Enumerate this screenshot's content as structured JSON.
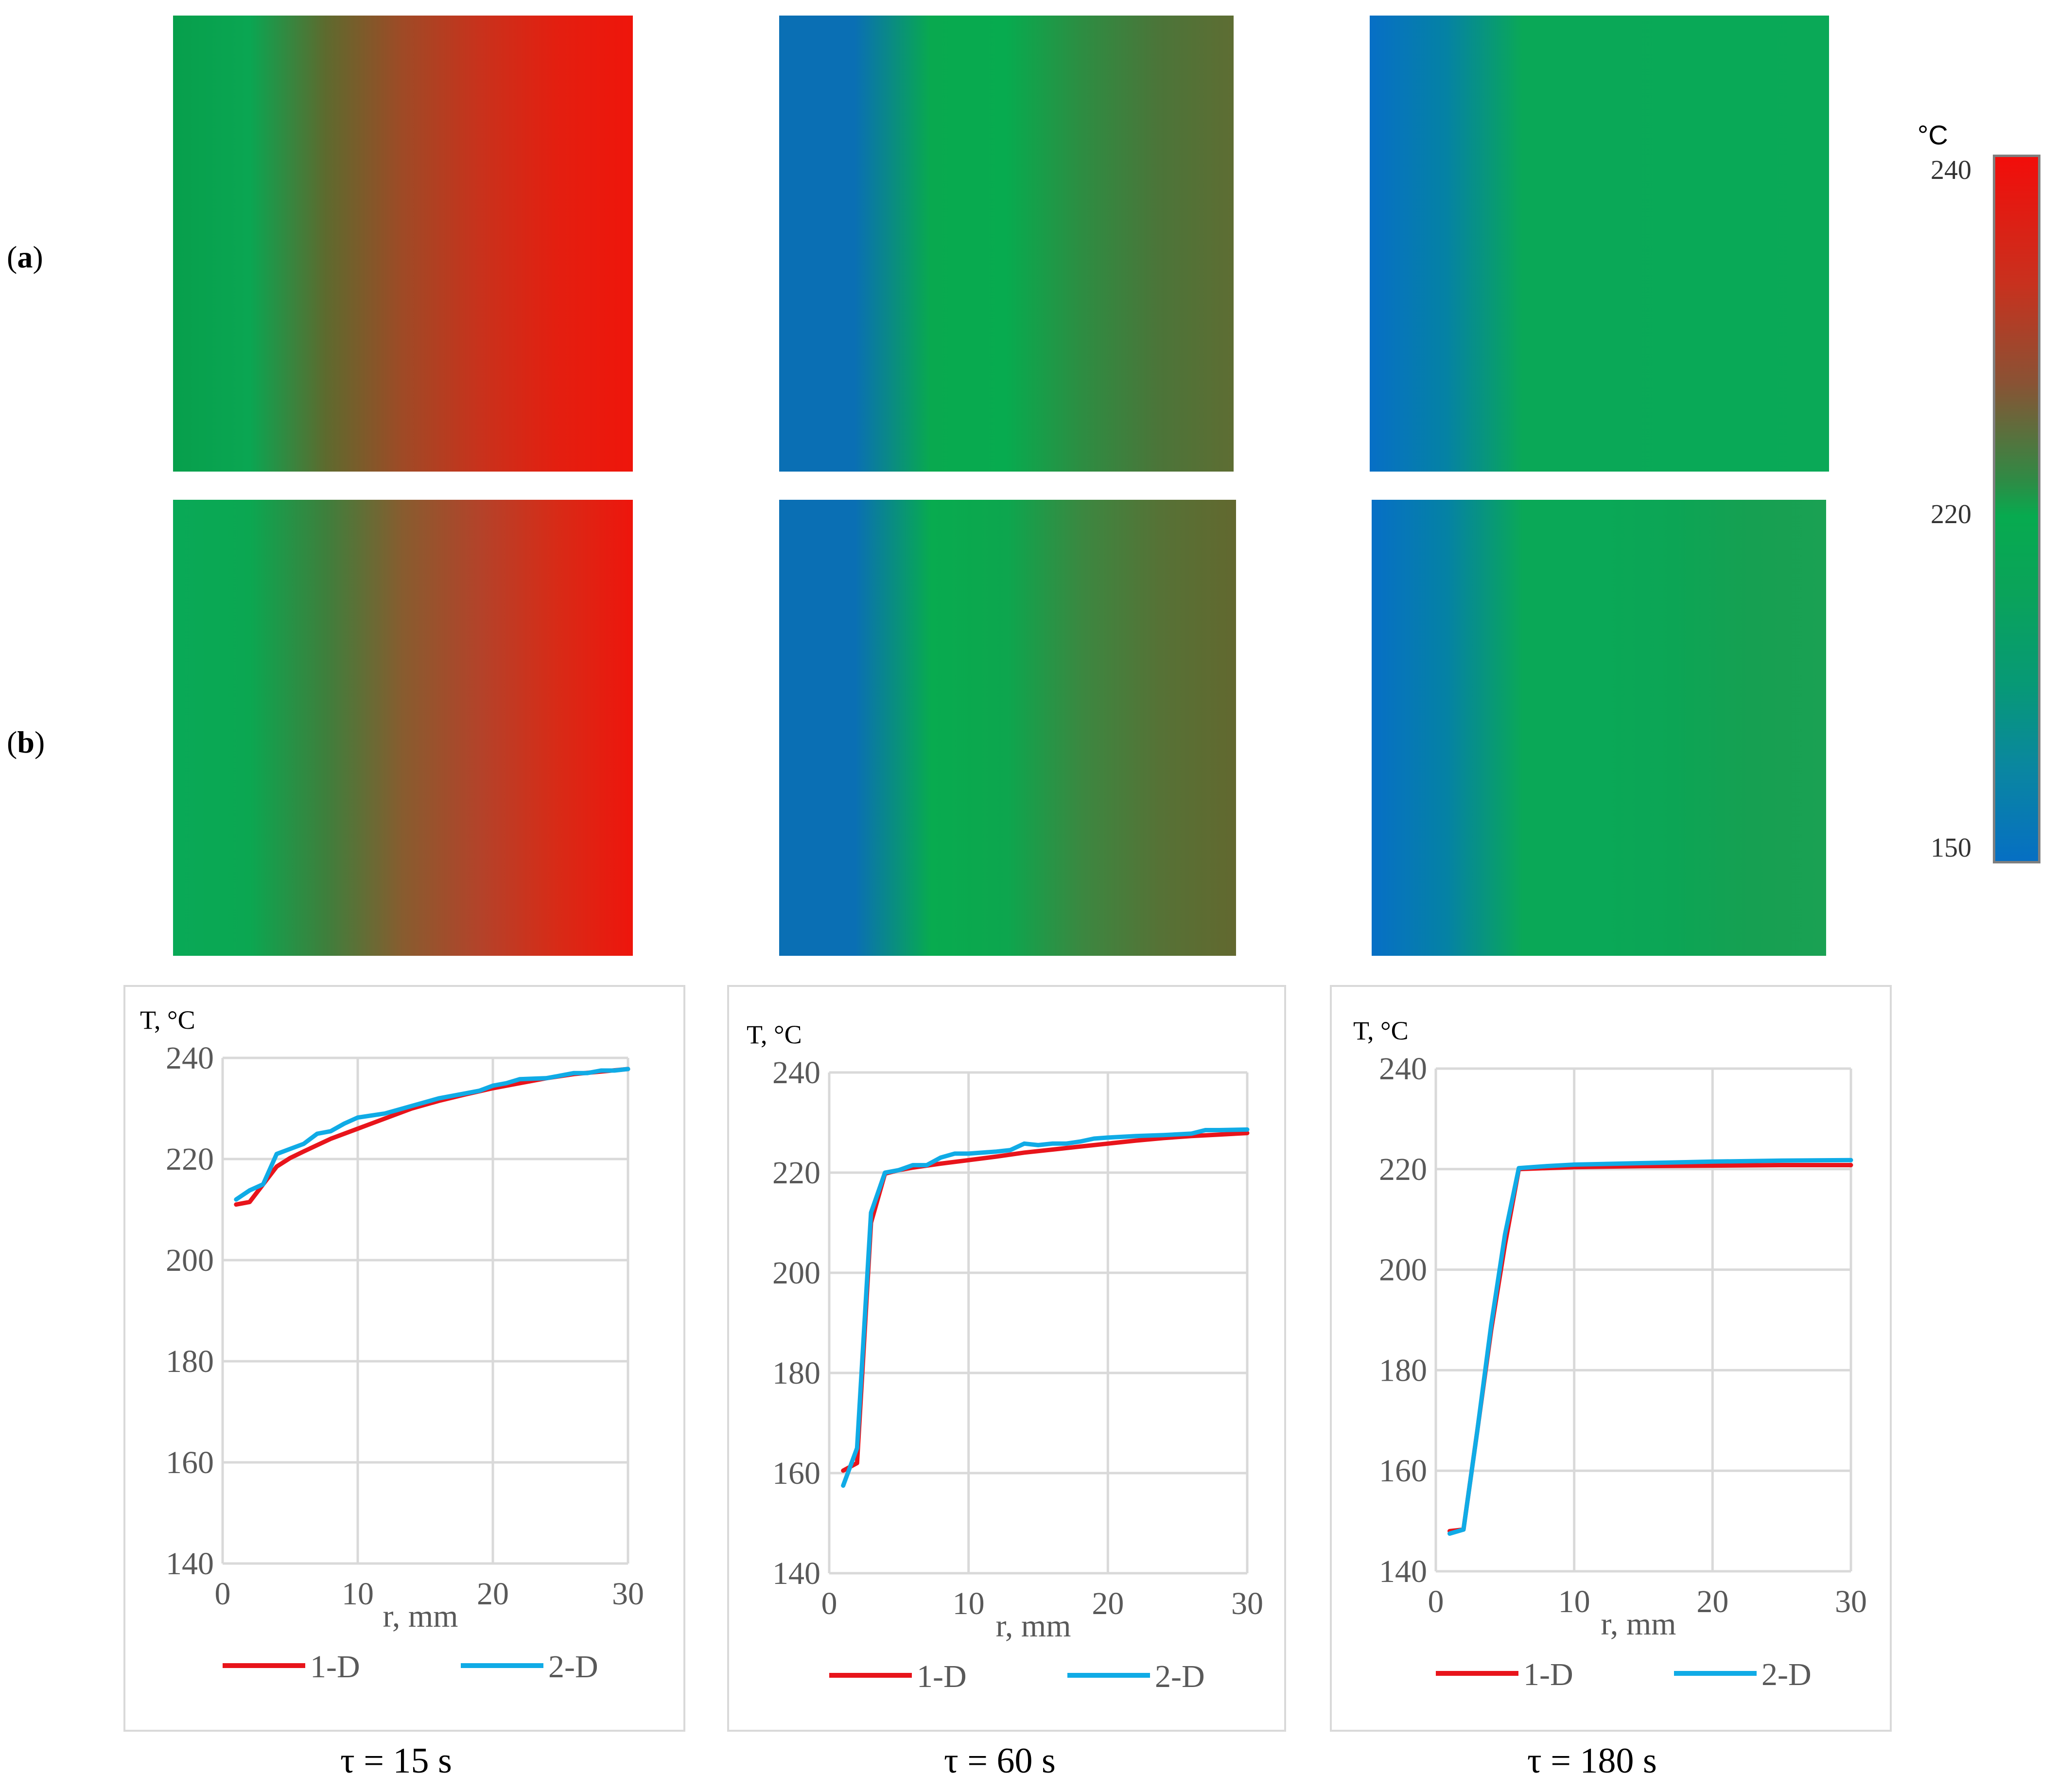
{
  "row_labels": {
    "a": "a",
    "b": "b"
  },
  "colorbar": {
    "unit": "°C",
    "ticks": [
      {
        "label": "240",
        "value": 240
      },
      {
        "label": "220",
        "value": 220
      },
      {
        "label": "150",
        "value": 150
      }
    ]
  },
  "fields": [
    {
      "name": "field-a-15",
      "stops": [
        "#079f4c",
        "#0aa652",
        "#5e6a2e",
        "#9f4a26",
        "#c8321c",
        "#e31f10",
        "#ef150b"
      ]
    },
    {
      "name": "field-a-60",
      "stops": [
        "#0a6fb4",
        "#0a6fb4",
        "#09a94f",
        "#07ab4f",
        "#2d8d42",
        "#4b7539",
        "#5e6d33"
      ]
    },
    {
      "name": "field-a-180",
      "stops": [
        "#066fc6",
        "#0582a4",
        "#0aa857",
        "#0aa857",
        "#09a957",
        "#09a957",
        "#0aa957"
      ]
    },
    {
      "name": "field-b-15",
      "stops": [
        "#09a957",
        "#0ba751",
        "#3e7f3c",
        "#885c2f",
        "#b3432a",
        "#d72b17",
        "#ee150c"
      ]
    },
    {
      "name": "field-b-60",
      "stops": [
        "#0a6fb4",
        "#0a6fb4",
        "#08ab4f",
        "#0da64e",
        "#3c8740",
        "#567236",
        "#62682f"
      ]
    },
    {
      "name": "field-b-180",
      "stops": [
        "#066fc6",
        "#0582a4",
        "#0aa857",
        "#0aa857",
        "#0ca555",
        "#16a052",
        "#1aa153"
      ]
    }
  ],
  "chart_data": [
    {
      "type": "line",
      "title": "",
      "ylabel": "T, °C",
      "xlabel": "r, mm",
      "xlim": [
        0,
        30
      ],
      "ylim": [
        140,
        240
      ],
      "xticks": [
        "0",
        "10",
        "20",
        "30"
      ],
      "yticks": [
        "240",
        "220",
        "200",
        "180",
        "160",
        "140"
      ],
      "legend_position": "bottom",
      "caption": "τ = 15 s",
      "series": [
        {
          "name": "1-D",
          "color": "#e8141b",
          "x": [
            1,
            2,
            3,
            4,
            5,
            6,
            8,
            10,
            12,
            14,
            16,
            18,
            20,
            22,
            24,
            26,
            28,
            30
          ],
          "y": [
            211,
            211.5,
            215,
            218.5,
            220.2,
            221.5,
            224,
            226,
            228,
            230,
            231.5,
            232.8,
            234,
            235,
            236,
            236.8,
            237.3,
            237.8
          ]
        },
        {
          "name": "2-D",
          "color": "#10abe6",
          "x": [
            1,
            2,
            3,
            4,
            5,
            6,
            7,
            8,
            9,
            10,
            12,
            14,
            16,
            18,
            19,
            20,
            21,
            22,
            24,
            25,
            26,
            27,
            28,
            29,
            30
          ],
          "y": [
            212,
            213.8,
            215,
            221,
            222,
            223,
            225,
            225.5,
            227,
            228.2,
            229,
            230.5,
            232,
            233,
            233.5,
            234.5,
            235,
            235.8,
            236,
            236.5,
            237,
            237,
            237.5,
            237.5,
            237.8
          ]
        }
      ]
    },
    {
      "type": "line",
      "title": "",
      "ylabel": "T, °C",
      "xlabel": "r, mm",
      "xlim": [
        0,
        30
      ],
      "ylim": [
        140,
        240
      ],
      "xticks": [
        "0",
        "10",
        "20",
        "30"
      ],
      "yticks": [
        "240",
        "220",
        "200",
        "180",
        "160",
        "140"
      ],
      "legend_position": "bottom",
      "caption": "τ = 60 s",
      "series": [
        {
          "name": "1-D",
          "color": "#e8141b",
          "x": [
            1,
            2,
            3,
            4,
            5,
            6,
            8,
            10,
            12,
            14,
            16,
            18,
            20,
            22,
            24,
            26,
            28,
            30
          ],
          "y": [
            160.5,
            162,
            210,
            219.8,
            220.5,
            221,
            221.8,
            222.5,
            223.2,
            224,
            224.6,
            225.2,
            225.8,
            226.4,
            226.9,
            227.3,
            227.6,
            227.9
          ]
        },
        {
          "name": "2-D",
          "color": "#10abe6",
          "x": [
            1,
            2,
            3,
            4,
            5,
            6,
            7,
            8,
            9,
            10,
            12,
            13,
            14,
            15,
            16,
            17,
            18,
            19,
            20,
            22,
            24,
            26,
            27,
            28,
            30
          ],
          "y": [
            157.5,
            165,
            212,
            220,
            220.5,
            221.5,
            221.5,
            223,
            223.8,
            223.8,
            224.2,
            224.5,
            225.8,
            225.5,
            225.8,
            225.8,
            226.2,
            226.8,
            227,
            227.3,
            227.5,
            227.8,
            228.5,
            228.5,
            228.6
          ]
        }
      ]
    },
    {
      "type": "line",
      "title": "",
      "ylabel": "T, °C",
      "xlabel": "r, mm",
      "xlim": [
        0,
        30
      ],
      "ylim": [
        140,
        240
      ],
      "xticks": [
        "0",
        "10",
        "20",
        "30"
      ],
      "yticks": [
        "240",
        "220",
        "200",
        "180",
        "160",
        "140"
      ],
      "legend_position": "bottom",
      "caption": "τ = 180 s",
      "series": [
        {
          "name": "1-D",
          "color": "#e8141b",
          "x": [
            1,
            2,
            3,
            4,
            5,
            6,
            8,
            10,
            15,
            20,
            25,
            30
          ],
          "y": [
            148,
            148.3,
            168,
            188,
            205,
            220,
            220.2,
            220.4,
            220.6,
            220.7,
            220.8,
            220.8
          ]
        },
        {
          "name": "2-D",
          "color": "#10abe6",
          "x": [
            1,
            2,
            3,
            4,
            5,
            6,
            8,
            10,
            15,
            20,
            25,
            30
          ],
          "y": [
            147.5,
            148.3,
            168,
            189,
            207,
            220.2,
            220.6,
            220.9,
            221.2,
            221.5,
            221.7,
            221.8
          ]
        }
      ]
    }
  ]
}
